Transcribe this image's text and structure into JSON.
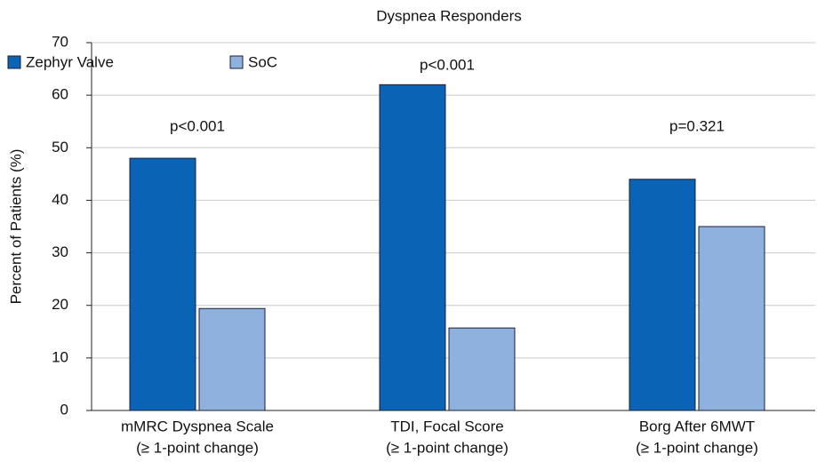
{
  "chart_data": {
    "type": "bar",
    "title": "Dyspnea Responders",
    "y_label": "Percent of Patients (%)",
    "categories": [
      [
        "mMRC Dyspnea Scale",
        "(≥ 1-point change)"
      ],
      [
        "TDI, Focal Score",
        "(≥ 1-point change)"
      ],
      [
        "Borg After 6MWT",
        "(≥ 1-point change)"
      ]
    ],
    "series": [
      {
        "name": "Zephyr Valve",
        "color": "#0b63b5",
        "values": [
          48,
          62,
          44
        ]
      },
      {
        "name": "SoC",
        "color": "#8fb1dd",
        "values": [
          19.4,
          15.7,
          35
        ]
      }
    ],
    "annotations": [
      "p<0.001",
      "p<0.001",
      "p=0.321"
    ],
    "ylim": [
      0,
      70
    ],
    "yticks": [
      0,
      10,
      20,
      30,
      40,
      50,
      60,
      70
    ],
    "grid": true,
    "legend": "top-left"
  }
}
